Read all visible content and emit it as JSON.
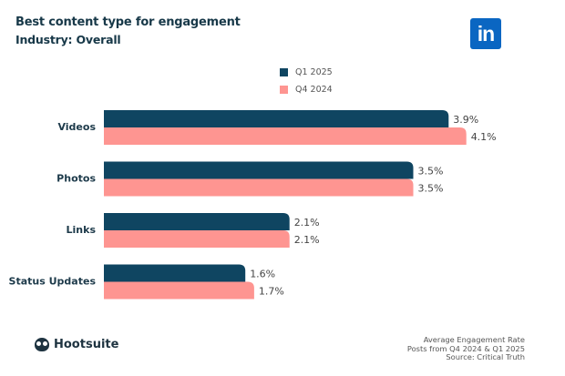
{
  "header": {
    "title": "Best content type for engagement",
    "subtitle": "Industry: Overall",
    "logo": "in"
  },
  "legend": [
    {
      "label": "Q1 2025",
      "color": "#0f4561"
    },
    {
      "label": "Q4 2024",
      "color": "#fe9591"
    }
  ],
  "chart_data": {
    "type": "bar",
    "orientation": "horizontal",
    "title": "Best content type for engagement",
    "subtitle": "Industry: Overall",
    "categories": [
      "Videos",
      "Photos",
      "Links",
      "Status Updates"
    ],
    "series": [
      {
        "name": "Q1 2025",
        "color": "#0f4561",
        "values": [
          3.9,
          3.5,
          2.1,
          1.6
        ],
        "labels": [
          "3.9%",
          "3.5%",
          "2.1%",
          "1.6%"
        ]
      },
      {
        "name": "Q4 2024",
        "color": "#fe9591",
        "values": [
          4.1,
          3.5,
          2.1,
          1.7
        ],
        "labels": [
          "4.1%",
          "3.5%",
          "2.1%",
          "1.7%"
        ]
      }
    ],
    "xlabel": "",
    "ylabel": "",
    "xlim": [
      0,
      4.1
    ],
    "grid": false,
    "legend_position": "top-center",
    "unit": "%"
  },
  "footer": {
    "brand": "Hootsuite",
    "notes": [
      "Average Engagement Rate",
      "Posts from Q4 2024 & Q1 2025",
      "Source: Critical Truth"
    ]
  }
}
